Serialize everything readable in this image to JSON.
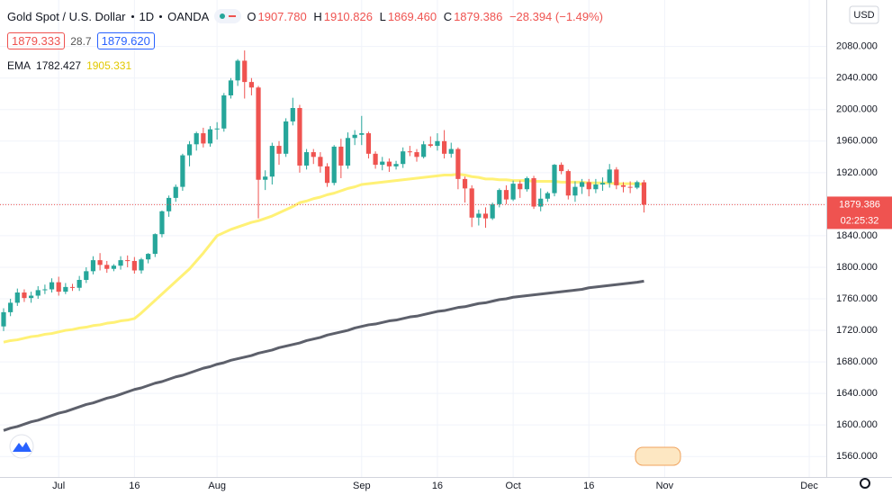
{
  "header": {
    "symbol": "Gold Spot / U.S. Dollar",
    "interval": "1D",
    "source": "OANDA",
    "ohlc": [
      [
        "O",
        "1907.780"
      ],
      [
        "H",
        "1910.826"
      ],
      [
        "L",
        "1869.460"
      ],
      [
        "C",
        "1879.386"
      ]
    ],
    "change": "−28.394 (−1.49%)",
    "bid": "1879.333",
    "spread": "28.7",
    "ask": "1879.620",
    "indicator": "EMA",
    "currency": "USD"
  },
  "chart_data": {
    "type": "candlestick",
    "categories": [
      null,
      null,
      null,
      null,
      null,
      null,
      null,
      null,
      "Jul",
      null,
      null,
      null,
      null,
      null,
      null,
      null,
      null,
      null,
      null,
      "16",
      null,
      null,
      null,
      null,
      null,
      null,
      null,
      null,
      null,
      null,
      null,
      "Aug",
      null,
      null,
      null,
      null,
      null,
      null,
      null,
      null,
      null,
      null,
      null,
      null,
      null,
      null,
      null,
      null,
      null,
      null,
      null,
      null,
      "Sep",
      null,
      null,
      null,
      null,
      null,
      null,
      null,
      null,
      null,
      null,
      "16",
      null,
      null,
      null,
      null,
      null,
      null,
      null,
      null,
      null,
      null,
      "Oct",
      null,
      null,
      null,
      null,
      null,
      null,
      null,
      null,
      null,
      null,
      "16",
      null,
      null,
      null,
      null,
      null,
      null,
      null,
      null,
      null,
      null,
      "Nov",
      null,
      null,
      null,
      null,
      null,
      null,
      null,
      null,
      null,
      null,
      null,
      null,
      null,
      null,
      null,
      null,
      null,
      null,
      null,
      null,
      "Dec",
      null,
      null
    ],
    "open": [
      1725,
      1743,
      1755,
      1768,
      1761,
      1764,
      1771,
      1772,
      1781,
      1769,
      1775,
      1774,
      1784,
      1795,
      1809,
      1803,
      1798,
      1802,
      1809,
      1808,
      1796,
      1810,
      1817,
      1842,
      1871,
      1888,
      1902,
      1942,
      1956,
      1970,
      1957,
      1975,
      1976,
      2018,
      2037,
      2062,
      2035,
      2028,
      1911,
      1915,
      1954,
      1944,
      1985,
      2002,
      1929,
      1946,
      1940,
      1928,
      1907,
      1953,
      1929,
      1964,
      1968,
      1970,
      1944,
      1930,
      1934,
      1928,
      1931,
      1947,
      1946,
      1940,
      1956,
      1954,
      1960,
      1944,
      1950,
      1912,
      1900,
      1863,
      1868,
      1862,
      1880,
      1898,
      1886,
      1906,
      1899,
      1913,
      1877,
      1887,
      1894,
      1930,
      1922,
      1891,
      1902,
      1908,
      1899,
      1905,
      1907,
      1924,
      1904,
      1902,
      1901,
      1907.78,
      null,
      null,
      null,
      null,
      null,
      null,
      null,
      null,
      null,
      null,
      null,
      null,
      null,
      null,
      null,
      null,
      null,
      null,
      null,
      null,
      null,
      null,
      null,
      null,
      null,
      null
    ],
    "high": [
      1748,
      1760,
      1773,
      1772,
      1769,
      1776,
      1778,
      1786,
      1788,
      1780,
      1779,
      1789,
      1800,
      1814,
      1818,
      1808,
      1804,
      1814,
      1815,
      1813,
      1812,
      1818,
      1843,
      1872,
      1891,
      1905,
      1944,
      1960,
      1972,
      1977,
      1979,
      1984,
      2021,
      2040,
      2064,
      2075,
      2040,
      2030,
      1923,
      1958,
      1960,
      1989,
      2015,
      2006,
      1950,
      1950,
      1946,
      1932,
      1955,
      1963,
      1971,
      1974,
      1992,
      1972,
      1947,
      1940,
      1938,
      1935,
      1952,
      1954,
      1950,
      1960,
      1966,
      1970,
      1974,
      1958,
      1952,
      1915,
      1904,
      1873,
      1876,
      1882,
      1900,
      1904,
      1910,
      1910,
      1915,
      1916,
      1900,
      1896,
      1931,
      1933,
      1924,
      1909,
      1912,
      1912,
      1912,
      1914,
      1931,
      1927,
      1908,
      1909,
      1910,
      1910.826,
      null,
      null,
      null,
      null,
      null,
      null,
      null,
      null,
      null,
      null,
      null,
      null,
      null,
      null,
      null,
      null,
      null,
      null,
      null,
      null,
      null,
      null,
      null,
      null,
      null,
      null
    ],
    "low": [
      1719,
      1738,
      1751,
      1756,
      1755,
      1760,
      1766,
      1768,
      1764,
      1766,
      1770,
      1770,
      1780,
      1791,
      1796,
      1793,
      1795,
      1797,
      1800,
      1792,
      1792,
      1805,
      1813,
      1838,
      1864,
      1883,
      1897,
      1928,
      1948,
      1952,
      1953,
      1962,
      1972,
      2014,
      2030,
      2014,
      2018,
      1862,
      1898,
      1905,
      1930,
      1940,
      1980,
      1920,
      1924,
      1931,
      1920,
      1902,
      1904,
      1913,
      1925,
      1955,
      1955,
      1938,
      1925,
      1923,
      1921,
      1924,
      1926,
      1941,
      1934,
      1938,
      1952,
      1948,
      1938,
      1939,
      1899,
      1882,
      1851,
      1853,
      1850,
      1860,
      1876,
      1880,
      1884,
      1888,
      1896,
      1874,
      1871,
      1883,
      1890,
      1918,
      1886,
      1883,
      1893,
      1890,
      1894,
      1897,
      1901,
      1899,
      1895,
      1894,
      1899,
      1869.46,
      null,
      null,
      null,
      null,
      null,
      null,
      null,
      null,
      null,
      null,
      null,
      null,
      null,
      null,
      null,
      null,
      null,
      null,
      null,
      null,
      null,
      null,
      null,
      null,
      null,
      null
    ],
    "close": [
      1743,
      1755,
      1768,
      1761,
      1764,
      1771,
      1772,
      1781,
      1769,
      1775,
      1774,
      1784,
      1795,
      1809,
      1803,
      1798,
      1802,
      1809,
      1808,
      1796,
      1810,
      1817,
      1842,
      1871,
      1888,
      1902,
      1942,
      1956,
      1970,
      1957,
      1975,
      1976,
      2018,
      2037,
      2062,
      2035,
      2028,
      1911,
      1915,
      1954,
      1944,
      1985,
      2002,
      1929,
      1946,
      1940,
      1928,
      1907,
      1953,
      1929,
      1964,
      1968,
      1970,
      1944,
      1930,
      1934,
      1928,
      1931,
      1947,
      1946,
      1940,
      1956,
      1954,
      1960,
      1944,
      1950,
      1912,
      1900,
      1863,
      1868,
      1862,
      1880,
      1898,
      1886,
      1906,
      1899,
      1913,
      1877,
      1887,
      1894,
      1930,
      1922,
      1891,
      1902,
      1908,
      1899,
      1905,
      1907,
      1924,
      1904,
      1902,
      1901,
      1908,
      1879.386,
      null,
      null,
      null,
      null,
      null,
      null,
      null,
      null,
      null,
      null,
      null,
      null,
      null,
      null,
      null,
      null,
      null,
      null,
      null,
      null,
      null,
      null,
      null,
      null,
      null,
      null
    ],
    "up_color": "#26a69a",
    "down_color": "#ef5350",
    "overlays": [
      {
        "color": "#5d606b",
        "values": [
          1593,
          1596,
          1598,
          1601,
          1604,
          1606,
          1609,
          1612,
          1615,
          1617,
          1620,
          1623,
          1626,
          1628,
          1631,
          1634,
          1636,
          1639,
          1642,
          1645,
          1647,
          1650,
          1653,
          1655,
          1658,
          1661,
          1663,
          1666,
          1669,
          1672,
          1674,
          1677,
          1679,
          1682,
          1684,
          1686,
          1688,
          1691,
          1693,
          1695,
          1698,
          1700,
          1702,
          1704,
          1707,
          1709,
          1711,
          1714,
          1716,
          1718,
          1720,
          1723,
          1725,
          1727,
          1728,
          1730,
          1732,
          1733,
          1735,
          1737,
          1738,
          1740,
          1742,
          1744,
          1745,
          1747,
          1749,
          1750,
          1752,
          1754,
          1755,
          1757,
          1759,
          1760,
          1762,
          1763,
          1764,
          1765,
          1766,
          1767,
          1768,
          1769,
          1770,
          1771,
          1772,
          1774,
          1775,
          1776,
          1777,
          1778,
          1779,
          1780,
          1781,
          1782.427,
          null,
          null,
          null,
          null,
          null,
          null,
          null,
          null,
          null,
          null,
          null,
          null,
          null,
          null,
          null,
          null,
          null,
          null,
          null,
          null,
          null,
          null,
          null,
          null,
          null,
          null
        ]
      },
      {
        "color": "#fff176",
        "values": [
          1705,
          1707,
          1708,
          1710,
          1712,
          1713,
          1715,
          1716,
          1718,
          1720,
          1721,
          1723,
          1724,
          1726,
          1727,
          1729,
          1730,
          1732,
          1733,
          1735,
          1742,
          1750,
          1758,
          1766,
          1774,
          1782,
          1790,
          1798,
          1808,
          1818,
          1829,
          1840,
          1844,
          1848,
          1851,
          1854,
          1857,
          1859,
          1862,
          1865,
          1869,
          1873,
          1877,
          1882,
          1884,
          1887,
          1889,
          1892,
          1894,
          1897,
          1900,
          1902,
          1905,
          1906,
          1907,
          1908,
          1909,
          1910,
          1911,
          1912,
          1913,
          1914,
          1915,
          1916,
          1917,
          1917,
          1918,
          1917,
          1915,
          1914,
          1912,
          1912,
          1911,
          1911,
          1910,
          1910,
          1910,
          1909,
          1909,
          1909,
          1909,
          1908,
          1908,
          1908,
          1908,
          1907,
          1907,
          1907,
          1907,
          1906,
          1906,
          1906,
          1906,
          1905.331,
          null,
          null,
          null,
          null,
          null,
          null,
          null,
          null,
          null,
          null,
          null,
          null,
          null,
          null,
          null,
          null,
          null,
          null,
          null,
          null,
          null,
          null,
          null,
          null,
          null,
          null
        ]
      }
    ],
    "ylim": [
      1534,
      2139
    ],
    "yticks": [
      {
        "value": 1560,
        "label": "1560.000"
      },
      {
        "value": 1600,
        "label": "1600.000"
      },
      {
        "value": 1640,
        "label": "1640.000"
      },
      {
        "value": 1680,
        "label": "1680.000"
      },
      {
        "value": 1720,
        "label": "1720.000"
      },
      {
        "value": 1760,
        "label": "1760.000"
      },
      {
        "value": 1800,
        "label": "1800.000"
      },
      {
        "value": 1840,
        "label": "1840.000"
      },
      {
        "value": 1880,
        "label": "1880.000"
      },
      {
        "value": 1920,
        "label": "1920.000"
      },
      {
        "value": 1960,
        "label": "1960.000"
      },
      {
        "value": 2000,
        "label": "2000.000"
      },
      {
        "value": 2040,
        "label": "2040.000"
      },
      {
        "value": 2080,
        "label": "2080.000"
      }
    ],
    "grid": true,
    "countdown": "02:25:32"
  }
}
